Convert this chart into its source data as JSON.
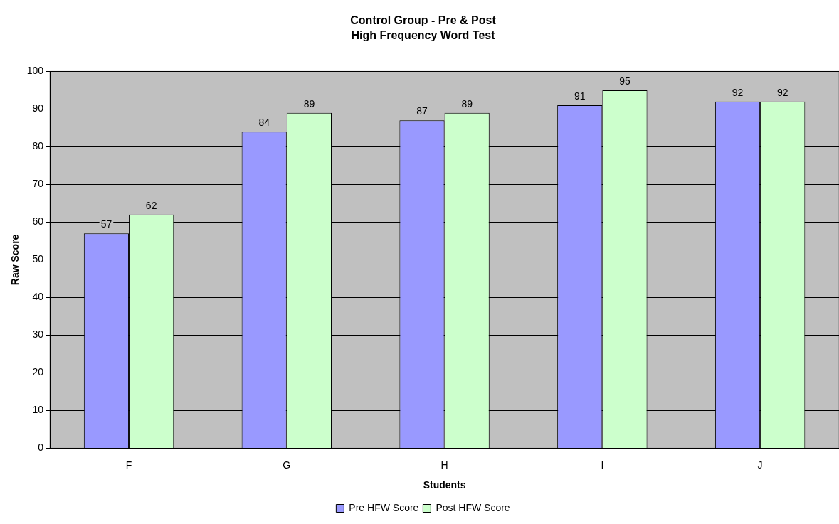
{
  "chart_data": {
    "type": "bar",
    "title": "Control Group - Pre & Post",
    "subtitle": "High Frequency Word Test",
    "xlabel": "Students",
    "ylabel": "Raw Score",
    "categories": [
      "F",
      "G",
      "H",
      "I",
      "J"
    ],
    "series": [
      {
        "name": "Pre HFW Score",
        "color": "#9999ff",
        "values": [
          57,
          84,
          87,
          91,
          92
        ]
      },
      {
        "name": "Post HFW Score",
        "color": "#ccffcc",
        "values": [
          62,
          89,
          89,
          95,
          92
        ]
      }
    ],
    "ylim": [
      0,
      100
    ],
    "yticks": [
      0,
      10,
      20,
      30,
      40,
      50,
      60,
      70,
      80,
      90,
      100
    ],
    "grid": "y",
    "legend": "bottom",
    "data_labels": true
  }
}
